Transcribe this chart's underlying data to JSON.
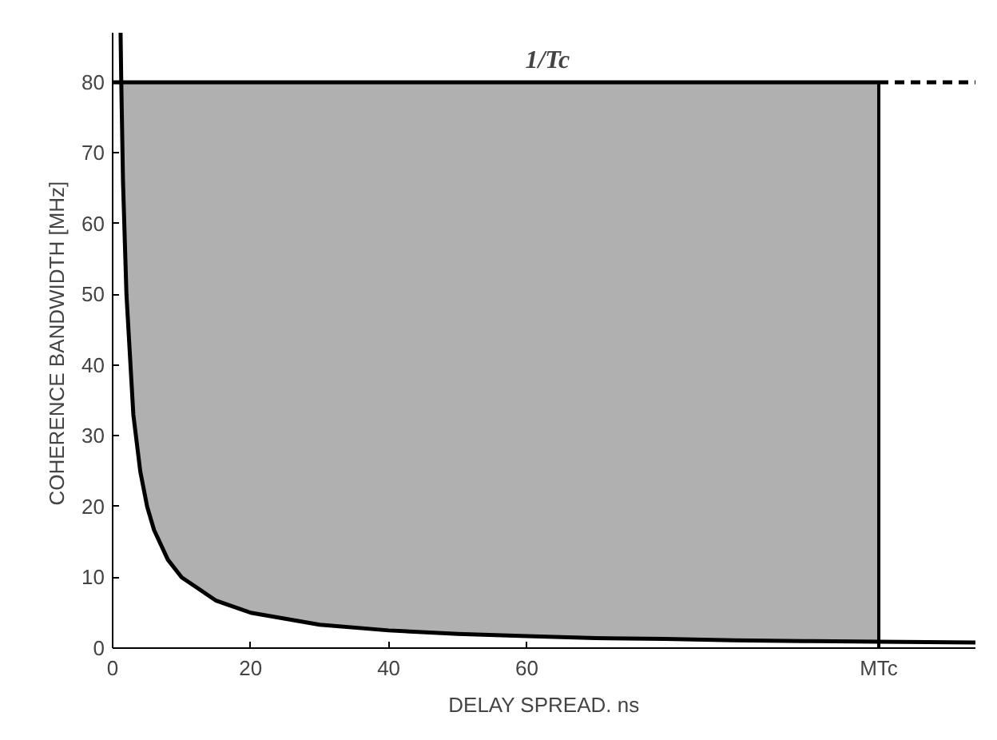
{
  "chart_data": {
    "type": "line",
    "xlabel": "DELAY SPREAD. ns",
    "ylabel": "COHERENCE  BANDWIDTH [MHz]",
    "xlim": [
      0,
      125
    ],
    "ylim": [
      0,
      87
    ],
    "xticks": [
      0,
      20,
      40,
      60,
      {
        "value": 111,
        "label": "MTc"
      }
    ],
    "yticks": [
      0,
      10,
      20,
      30,
      40,
      50,
      60,
      70,
      80
    ],
    "grid": false,
    "marker": "none",
    "series": [
      {
        "color": "#000000",
        "x": [
          1.15,
          1.25,
          1.5,
          2,
          3,
          4,
          5,
          6,
          8,
          10,
          15,
          20,
          30,
          40,
          50,
          60,
          70,
          80,
          90,
          100,
          111,
          125
        ],
        "values": [
          87,
          80,
          66,
          50,
          33,
          25,
          20,
          16.7,
          12.5,
          10,
          6.7,
          5,
          3.3,
          2.5,
          2,
          1.7,
          1.4,
          1.3,
          1.1,
          1,
          0.9,
          0.8
        ],
        "lower": [
          80,
          80,
          66,
          50,
          33,
          25,
          20,
          16.7,
          12.5,
          10,
          6.7,
          5,
          3.3,
          2.5,
          2,
          1.7,
          1.4,
          1.3,
          1.1,
          1,
          0.9,
          null
        ],
        "upper": [
          80,
          80,
          80,
          80,
          80,
          80,
          80,
          80,
          80,
          80,
          80,
          80,
          80,
          80,
          80,
          80,
          80,
          80,
          80,
          80,
          80,
          null
        ]
      },
      {
        "type": "line",
        "color": "#000000",
        "line_style": "solid",
        "x": [
          0,
          111
        ],
        "values": [
          80,
          80
        ]
      },
      {
        "type": "line",
        "color": "#000000",
        "line_style": "dashed",
        "x": [
          111,
          125
        ],
        "values": [
          80,
          80
        ]
      }
    ],
    "ref_lines": [
      {
        "axis": "x",
        "value": 111,
        "color": "#000000"
      }
    ],
    "annotations": [
      {
        "text": "1/Tc",
        "x": 63,
        "y": 80
      }
    ]
  }
}
